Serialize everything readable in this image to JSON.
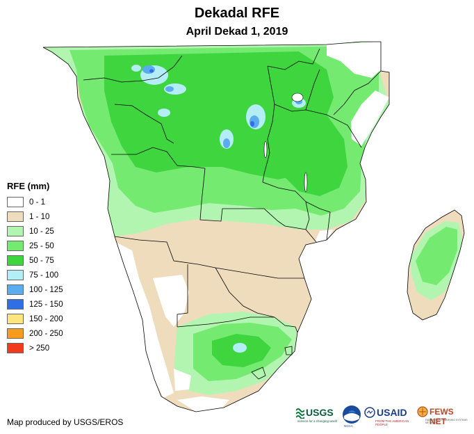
{
  "title": "Dekadal RFE",
  "subtitle": "April Dekad 1, 2019",
  "legend": {
    "title": "RFE (mm)",
    "items": [
      {
        "label": "0 - 1",
        "color": "#ffffff"
      },
      {
        "label": "1 - 10",
        "color": "#efdcbd"
      },
      {
        "label": "10 - 25",
        "color": "#b2f5b0"
      },
      {
        "label": "25 - 50",
        "color": "#74ea71"
      },
      {
        "label": "50 - 75",
        "color": "#3ed53f"
      },
      {
        "label": "75 - 100",
        "color": "#b3edf5"
      },
      {
        "label": "100 - 125",
        "color": "#5aacee"
      },
      {
        "label": "125 - 150",
        "color": "#2f6ee6"
      },
      {
        "label": "150 - 200",
        "color": "#fbe57e"
      },
      {
        "label": "200 - 250",
        "color": "#f79c1d"
      },
      {
        "label": "> 250",
        "color": "#f23a1d"
      }
    ]
  },
  "credit": "Map produced by USGS/EROS",
  "logos": {
    "usgs": "USGS",
    "usgs_tagline": "science for a changing world",
    "noaa": "NOAA",
    "usaid": "USAID",
    "usaid_tagline": "FROM THE AMERICAN PEOPLE",
    "fewsnet": "FEWS NET",
    "fewsnet_tagline": "FAMINE EARLY WARNING SYSTEMS NETWORK"
  }
}
